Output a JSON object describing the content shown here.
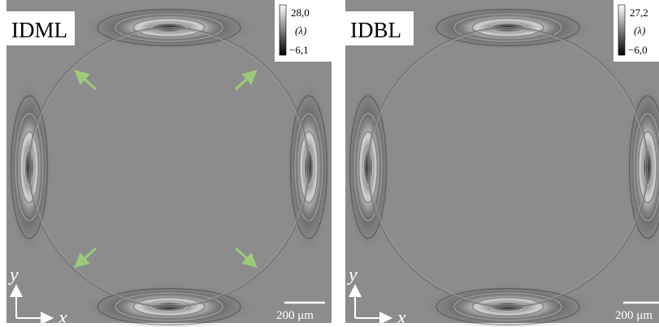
{
  "panels": [
    {
      "label": "IDML",
      "colorbar": {
        "max": "28,0",
        "unit": "(λ)",
        "min": "−6,1"
      },
      "axes": {
        "y": "y",
        "x": "x"
      },
      "scale_bar": "200 μm"
    },
    {
      "label": "IDBL",
      "colorbar": {
        "max": "27,2",
        "unit": "(λ)",
        "min": "−6,0"
      },
      "axes": {
        "y": "y",
        "x": "x"
      },
      "scale_bar": "200 μm"
    }
  ]
}
